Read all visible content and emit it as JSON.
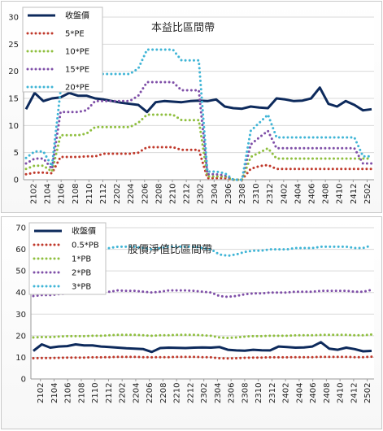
{
  "chart_data": [
    {
      "type": "line",
      "title": "本益比區間帶",
      "ylim": [
        0,
        30
      ],
      "yticks": [
        0,
        5,
        10,
        15,
        20,
        25,
        30
      ],
      "grid": true,
      "legend_position": "top-left",
      "x_tick_labels": [
        "2102",
        "2104",
        "2106",
        "2108",
        "2110",
        "2112",
        "2202",
        "2204",
        "2206",
        "2208",
        "2210",
        "2212",
        "2302",
        "2304",
        "2306",
        "2308",
        "2310",
        "2312",
        "2402",
        "2404",
        "2406",
        "2408",
        "2410",
        "2412",
        "2502"
      ],
      "series": [
        {
          "name": "收盤價",
          "color": "#0d2a5c",
          "style": "solid",
          "values": [
            13,
            16,
            14.5,
            15,
            15.2,
            16,
            15.5,
            15.5,
            15,
            14.8,
            14.5,
            14.2,
            14,
            13.8,
            12.5,
            14.3,
            14.5,
            14.4,
            14.3,
            14.5,
            14.6,
            14.5,
            14.8,
            13.5,
            13.2,
            13.1,
            13.5,
            13.3,
            13.2,
            15,
            14.8,
            14.5,
            14.6,
            15,
            17,
            14,
            13.5,
            14.5,
            13.8,
            12.8,
            13
          ]
        },
        {
          "name": "5*PE",
          "color": "#c0392b",
          "style": "dotted",
          "values": [
            1,
            1.3,
            1.3,
            1.2,
            4.2,
            4.2,
            4.2,
            4.3,
            4.3,
            4.8,
            4.8,
            4.8,
            4.8,
            5,
            6,
            6,
            6,
            6,
            5.5,
            5.5,
            5.5,
            0.3,
            0.3,
            0.3,
            0,
            0,
            2,
            2.5,
            2.7,
            2,
            2,
            2,
            2,
            2,
            2,
            2,
            2,
            2,
            2,
            2,
            2
          ]
        },
        {
          "name": "10*PE",
          "color": "#8fbf3f",
          "style": "dotted",
          "values": [
            2,
            2.6,
            2.6,
            1.5,
            8.2,
            8.2,
            8.2,
            8.5,
            9.7,
            9.7,
            9.7,
            9.7,
            9.7,
            10.5,
            12,
            12,
            12,
            12,
            11,
            11,
            11,
            0.6,
            0.6,
            0.6,
            0,
            0,
            4.2,
            5,
            5.8,
            3.9,
            3.9,
            3.9,
            3.9,
            3.9,
            3.9,
            3.9,
            3.9,
            3.9,
            3.9,
            3.9,
            3.9
          ]
        },
        {
          "name": "15*PE",
          "color": "#7f4fa8",
          "style": "dotted",
          "values": [
            3,
            3.9,
            3.9,
            2,
            12.5,
            12.5,
            12.5,
            12.8,
            14.5,
            14.5,
            14.5,
            14.5,
            14.5,
            15.5,
            18,
            18,
            18,
            18,
            16.5,
            16.5,
            16.5,
            1,
            1,
            0.8,
            0,
            0,
            6.5,
            7.8,
            9,
            5.8,
            5.8,
            5.8,
            5.8,
            5.8,
            5.8,
            5.8,
            5.8,
            5.8,
            5.8,
            3,
            3
          ]
        },
        {
          "name": "20*PE",
          "color": "#40b5d6",
          "style": "dotted",
          "values": [
            4,
            5.2,
            5.2,
            2.5,
            16.5,
            16.5,
            16.5,
            19.5,
            19.5,
            19.5,
            19.5,
            19.5,
            19.5,
            20.5,
            24,
            24,
            24,
            24,
            22,
            22,
            22,
            1.5,
            1.5,
            1.2,
            0,
            0,
            9,
            10.5,
            12,
            7.8,
            7.8,
            7.8,
            7.8,
            7.8,
            7.8,
            7.8,
            7.8,
            7.8,
            7.8,
            4.3,
            4.3
          ]
        }
      ]
    },
    {
      "type": "line",
      "title": "股價淨值比區間帶",
      "ylim": [
        0,
        70
      ],
      "yticks": [
        0,
        10,
        20,
        30,
        40,
        50,
        60,
        70
      ],
      "grid": true,
      "legend_position": "top-left",
      "x_tick_labels": [
        "2102",
        "2104",
        "2106",
        "2108",
        "2110",
        "2112",
        "2202",
        "2204",
        "2206",
        "2208",
        "2210",
        "2212",
        "2302",
        "2304",
        "2306",
        "2308",
        "2310",
        "2312",
        "2402",
        "2404",
        "2406",
        "2408",
        "2410",
        "2412",
        "2502"
      ],
      "series": [
        {
          "name": "收盤價",
          "color": "#0d2a5c",
          "style": "solid",
          "values": [
            13,
            16,
            14.5,
            15,
            15.2,
            16,
            15.5,
            15.5,
            15,
            14.8,
            14.5,
            14.2,
            14,
            13.8,
            12.5,
            14.3,
            14.5,
            14.4,
            14.3,
            14.5,
            14.6,
            14.5,
            14.8,
            13.5,
            13.2,
            13.1,
            13.5,
            13.3,
            13.2,
            15,
            14.8,
            14.5,
            14.6,
            15,
            17,
            14,
            13.5,
            14.5,
            13.8,
            12.8,
            13
          ]
        },
        {
          "name": "0.5*PB",
          "color": "#c0392b",
          "style": "dotted",
          "values": [
            9.6,
            9.7,
            9.7,
            9.8,
            9.9,
            9.9,
            9.9,
            10,
            10,
            10.1,
            10.2,
            10.2,
            10.2,
            10.1,
            10,
            10.1,
            10.1,
            10.2,
            10.2,
            10.2,
            10.1,
            10,
            9.6,
            9.5,
            9.6,
            9.8,
            9.9,
            9.9,
            10,
            10,
            10,
            10.1,
            10.1,
            10.1,
            10.2,
            10.2,
            10.2,
            10.2,
            10.1,
            10.1,
            10.3
          ]
        },
        {
          "name": "1*PB",
          "color": "#8fbf3f",
          "style": "dotted",
          "values": [
            19.2,
            19.4,
            19.4,
            19.6,
            19.8,
            19.8,
            19.8,
            20,
            20,
            20.2,
            20.4,
            20.4,
            20.4,
            20.2,
            20,
            20.2,
            20.2,
            20.4,
            20.4,
            20.4,
            20.2,
            20,
            19.2,
            19,
            19.2,
            19.6,
            19.8,
            19.8,
            20,
            20,
            20,
            20.2,
            20.2,
            20.2,
            20.4,
            20.4,
            20.4,
            20.4,
            20.2,
            20.2,
            20.6
          ]
        },
        {
          "name": "2*PB",
          "color": "#7f4fa8",
          "style": "dotted",
          "values": [
            38.4,
            38.8,
            38.8,
            39.2,
            39.6,
            39.6,
            39.6,
            40,
            40,
            40.4,
            41,
            40.8,
            40.8,
            40.4,
            40,
            40.4,
            41,
            41,
            41,
            40.8,
            40.4,
            40,
            38.4,
            38,
            38.4,
            39.2,
            39.6,
            39.6,
            40,
            40,
            40,
            40.4,
            40.4,
            40.4,
            40.8,
            40.8,
            40.8,
            40.8,
            40.4,
            40.4,
            41.2
          ]
        },
        {
          "name": "3*PB",
          "color": "#40b5d6",
          "style": "dotted",
          "values": [
            57.6,
            58.2,
            58.2,
            58.8,
            59.4,
            59.4,
            59.4,
            60,
            60,
            60.6,
            61.2,
            61.2,
            61.2,
            60.6,
            60,
            60.6,
            61.2,
            61.2,
            61.2,
            61.2,
            60.6,
            60,
            57.6,
            57,
            57.6,
            58.8,
            59.4,
            59.4,
            60,
            60,
            60,
            60.6,
            60.6,
            60.6,
            61.2,
            61.2,
            61.2,
            61.2,
            60.6,
            60.6,
            61.8
          ]
        }
      ]
    }
  ]
}
